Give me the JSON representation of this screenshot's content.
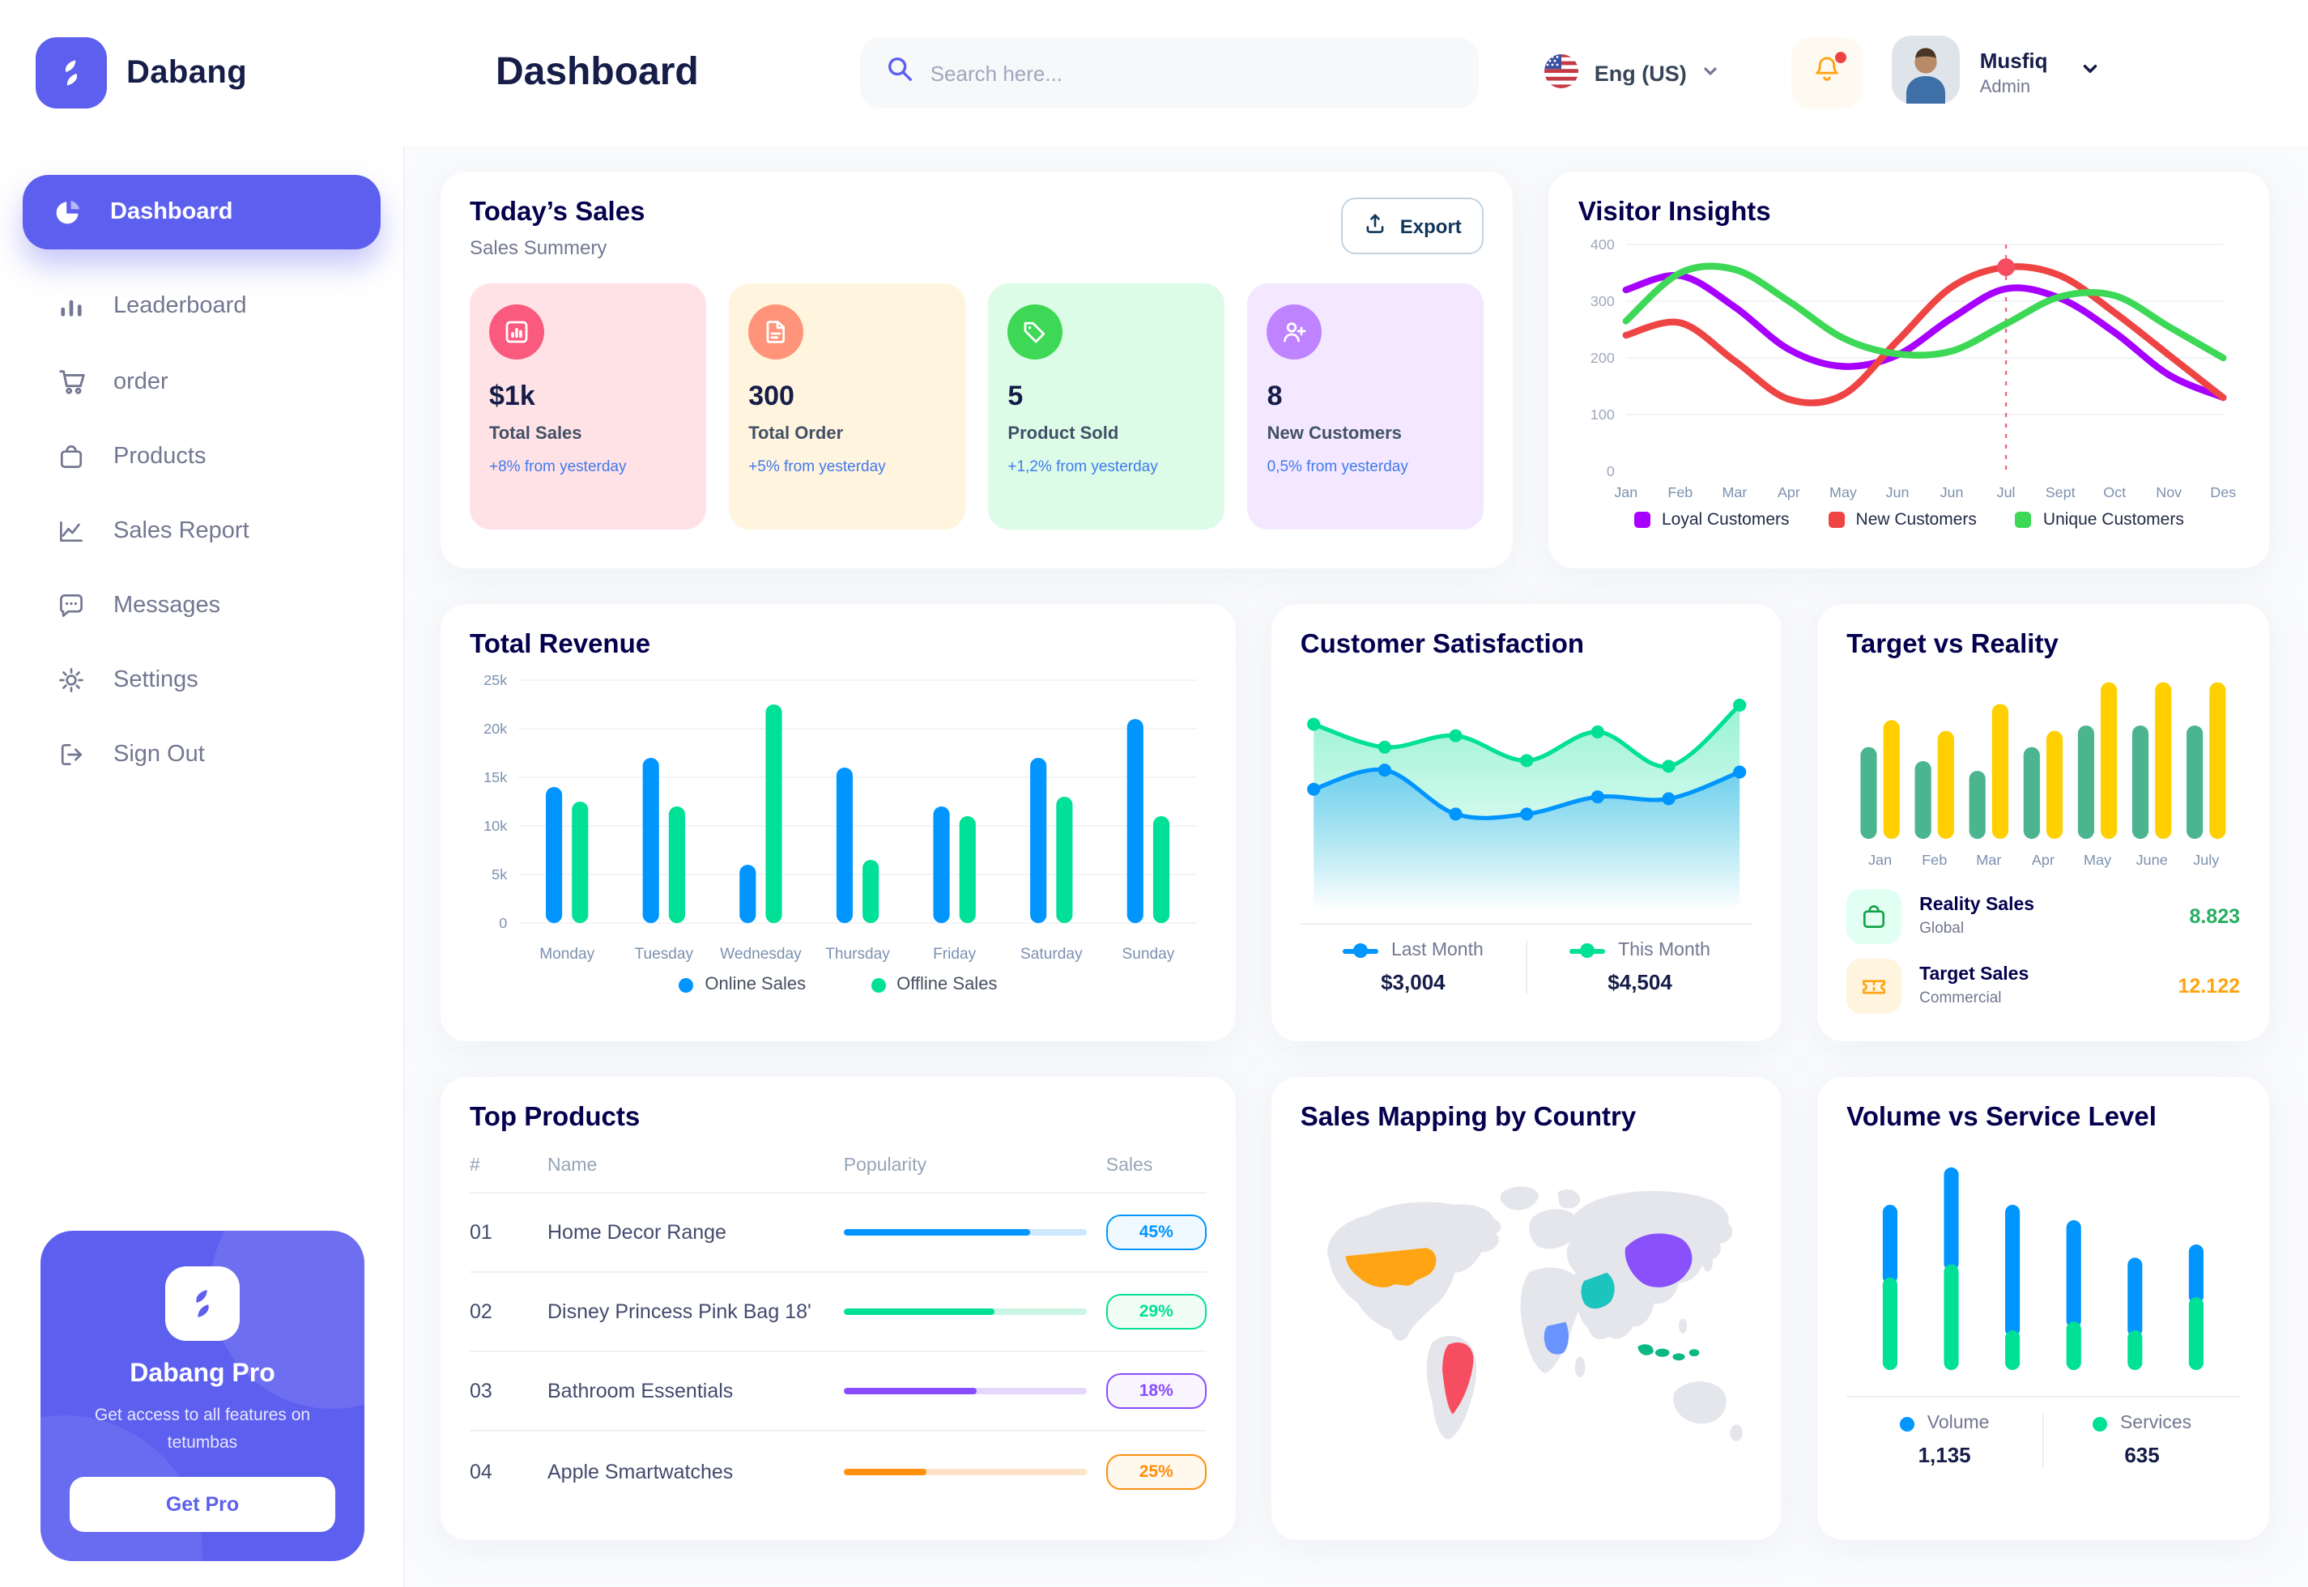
{
  "app": {
    "brand": "Dabang",
    "accent_color": "#5D5FEF"
  },
  "header": {
    "page_title": "Dashboard",
    "search_placeholder": "Search here...",
    "language": "Eng (US)",
    "user_name": "Musfiq",
    "user_role": "Admin"
  },
  "icons": [
    "pie-chart-icon",
    "bar-chart-icon",
    "cart-icon",
    "bag-icon",
    "line-chart-icon",
    "chat-icon",
    "gear-icon",
    "sign-out-icon",
    "search-icon",
    "us-flag-icon",
    "bell-icon",
    "chevron-down-icon",
    "export-icon",
    "file-icon",
    "tag-icon",
    "user-plus-icon",
    "ticket-icon"
  ],
  "sidebar": {
    "items": [
      {
        "label": "Dashboard",
        "icon": "dashboard",
        "active": true
      },
      {
        "label": "Leaderboard",
        "icon": "leaderboard",
        "active": false
      },
      {
        "label": "order",
        "icon": "order",
        "active": false
      },
      {
        "label": "Products",
        "icon": "products",
        "active": false
      },
      {
        "label": "Sales Report",
        "icon": "sales-report",
        "active": false
      },
      {
        "label": "Messages",
        "icon": "messages",
        "active": false
      },
      {
        "label": "Settings",
        "icon": "settings",
        "active": false
      },
      {
        "label": "Sign Out",
        "icon": "sign-out",
        "active": false
      }
    ],
    "promo": {
      "title": "Dabang Pro",
      "subtitle": "Get access to all features on tetumbas",
      "button_label": "Get Pro"
    }
  },
  "today_sales": {
    "title": "Today’s Sales",
    "subtitle": "Sales Summery",
    "export_label": "Export",
    "cards": [
      {
        "value": "$1k",
        "label": "Total Sales",
        "delta": "+8% from yesterday",
        "bg": "#FFE2E5",
        "icon_bg": "#FA5A7D",
        "icon": "chart"
      },
      {
        "value": "300",
        "label": "Total Order",
        "delta": "+5% from yesterday",
        "bg": "#FFF4DE",
        "icon_bg": "#FF947A",
        "icon": "file"
      },
      {
        "value": "5",
        "label": "Product Sold",
        "delta": "+1,2% from yesterday",
        "bg": "#DCFCE7",
        "icon_bg": "#3CD856",
        "icon": "tag"
      },
      {
        "value": "8",
        "label": "New Customers",
        "delta": "0,5% from yesterday",
        "bg": "#F3E8FF",
        "icon_bg": "#BF83FF",
        "icon": "user-plus"
      }
    ]
  },
  "section_titles": {
    "top_products": "Top Products",
    "sales_map": "Sales Mapping by Country"
  },
  "target_legend": [
    {
      "label": "Reality Sales",
      "sub": "Global",
      "value": "8.823",
      "value_color": "#27AE60",
      "tile_bg": "#E2FFF3",
      "icon": "bag"
    },
    {
      "label": "Target Sales",
      "sub": "Commercial",
      "value": "12.122",
      "value_color": "#FFA412",
      "tile_bg": "#FFF4DE",
      "icon": "ticket"
    }
  ],
  "top_products": {
    "columns": [
      "#",
      "Name",
      "Popularity",
      "Sales"
    ],
    "rows": [
      {
        "num": "01",
        "name": "Home Decor Range",
        "popularity": 77,
        "sales": "45%",
        "color": "#0095FF",
        "track": "#CDE7FF",
        "badge_bg": "#F0F9FF"
      },
      {
        "num": "02",
        "name": "Disney Princess Pink Bag 18'",
        "popularity": 62,
        "sales": "29%",
        "color": "#00E096",
        "track": "#CBF5E3",
        "badge_bg": "#F0FDF4"
      },
      {
        "num": "03",
        "name": "Bathroom Essentials",
        "popularity": 55,
        "sales": "18%",
        "color": "#884DFF",
        "track": "#E3D7FB",
        "badge_bg": "#F9F5FF"
      },
      {
        "num": "04",
        "name": "Apple Smartwatches",
        "popularity": 34,
        "sales": "25%",
        "color": "#FF8F0D",
        "track": "#FFE3C8",
        "badge_bg": "#FFF8EC"
      }
    ]
  },
  "sales_map_countries": [
    {
      "name": "United States",
      "color": "#FFA412"
    },
    {
      "name": "Brazil",
      "color": "#F64E60"
    },
    {
      "name": "Democratic Republic of Congo",
      "color": "#6993FF"
    },
    {
      "name": "Saudi Arabia",
      "color": "#1BC5BD"
    },
    {
      "name": "China",
      "color": "#8950FC"
    },
    {
      "name": "Indonesia",
      "color": "#0BB783"
    }
  ],
  "chart_data": [
    {
      "id": "visitor-insights",
      "type": "line",
      "title": "Visitor Insights",
      "x": [
        "Jan",
        "Feb",
        "Mar",
        "Apr",
        "May",
        "Jun",
        "Jun",
        "Jul",
        "Sept",
        "Oct",
        "Nov",
        "Des"
      ],
      "ylim": [
        0,
        400
      ],
      "yticks": [
        0,
        100,
        200,
        300,
        400
      ],
      "grid": true,
      "legend_position": "bottom",
      "series": [
        {
          "name": "Loyal Customers",
          "color": "#A700FF",
          "values": [
            320,
            345,
            290,
            215,
            185,
            205,
            270,
            322,
            305,
            245,
            170,
            130
          ]
        },
        {
          "name": "New Customers",
          "color": "#EF4444",
          "values": [
            240,
            262,
            195,
            127,
            135,
            230,
            325,
            360,
            345,
            280,
            205,
            130
          ]
        },
        {
          "name": "Unique Customers",
          "color": "#3CD856",
          "values": [
            265,
            350,
            356,
            300,
            235,
            207,
            212,
            260,
            308,
            310,
            255,
            200
          ]
        }
      ],
      "marker": {
        "x_index": 7,
        "series": 1,
        "style": "red-dot-with-dashed-line"
      }
    },
    {
      "id": "total-revenue",
      "type": "bar",
      "title": "Total Revenue",
      "categories": [
        "Monday",
        "Tuesday",
        "Wednesday",
        "Thursday",
        "Friday",
        "Saturday",
        "Sunday"
      ],
      "ylim": [
        0,
        25000
      ],
      "ytick_labels": [
        "0",
        "5k",
        "10k",
        "15k",
        "20k",
        "25k"
      ],
      "grid": true,
      "legend_position": "bottom",
      "series": [
        {
          "name": "Online Sales",
          "color": "#0095FF",
          "values": [
            14000,
            17000,
            6000,
            16000,
            12000,
            17000,
            21000
          ]
        },
        {
          "name": "Offline Sales",
          "color": "#00E096",
          "values": [
            12500,
            12000,
            22500,
            6500,
            11000,
            13000,
            11000
          ]
        }
      ]
    },
    {
      "id": "customer-satisfaction",
      "type": "area",
      "title": "Customer Satisfaction",
      "ylim": [
        0,
        100
      ],
      "grid": false,
      "legend_position": "bottom",
      "series": [
        {
          "name": "Last Month",
          "color": "#0095FF",
          "total": "$3,004",
          "values": [
            48,
            58,
            35,
            35,
            44,
            43,
            57
          ]
        },
        {
          "name": "This Month",
          "color": "#00E096",
          "total": "$4,504",
          "values": [
            82,
            70,
            76,
            63,
            78,
            60,
            92
          ]
        }
      ]
    },
    {
      "id": "target-vs-reality",
      "type": "bar",
      "title": "Target vs Reality",
      "categories": [
        "Jan",
        "Feb",
        "Mar",
        "Apr",
        "May",
        "June",
        "July"
      ],
      "ylim": [
        0,
        15
      ],
      "grid": false,
      "legend_position": "bottom",
      "series": [
        {
          "name": "Reality Sales",
          "color": "#4AB58E",
          "values": [
            8.5,
            7.2,
            6.3,
            8.5,
            10.5,
            10.5,
            10.5
          ]
        },
        {
          "name": "Target Sales",
          "color": "#FFCF00",
          "values": [
            11,
            10,
            12.5,
            10,
            14.5,
            14.5,
            14.5
          ]
        }
      ]
    },
    {
      "id": "volume-vs-service",
      "type": "stacked-bar",
      "title": "Volume vs Service Level",
      "ylim": [
        0,
        100
      ],
      "grid": false,
      "legend_position": "bottom",
      "series": [
        {
          "name": "Volume",
          "color": "#0095FF",
          "total": "1,135",
          "values": [
            33,
            44,
            57,
            46,
            33,
            24
          ]
        },
        {
          "name": "Services",
          "color": "#00E096",
          "total": "635",
          "values": [
            42,
            48,
            18,
            22,
            18,
            33
          ]
        }
      ]
    }
  ]
}
